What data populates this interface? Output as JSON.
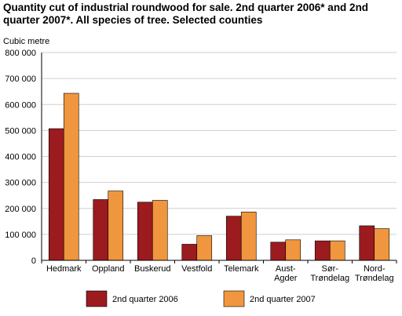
{
  "chart_data": {
    "type": "bar",
    "title_lines": [
      "Quantity cut of industrial roundwood for sale. 2nd quarter 2006* and 2nd",
      "quarter 2007*. All species of tree. Selected counties"
    ],
    "ylabel": "Cubic metre",
    "ylim": [
      0,
      800000
    ],
    "yticks": [
      0,
      100000,
      200000,
      300000,
      400000,
      500000,
      600000,
      700000,
      800000
    ],
    "ytick_labels": [
      "0",
      "100 000",
      "200 000",
      "300 000",
      "400 000",
      "500 000",
      "600 000",
      "700 000",
      "800 000"
    ],
    "grid": true,
    "legend_position": "bottom",
    "categories": [
      [
        "Hedmark"
      ],
      [
        "Oppland"
      ],
      [
        "Buskerud"
      ],
      [
        "Vestfold"
      ],
      [
        "Telemark"
      ],
      [
        "Aust-",
        "Agder"
      ],
      [
        "Sør-",
        "Trøndelag"
      ],
      [
        "Nord-",
        "Trøndelag"
      ]
    ],
    "series": [
      {
        "name": "2nd quarter 2006",
        "color": "#9b1b1f",
        "values": [
          507000,
          234000,
          224000,
          62000,
          170000,
          70000,
          75000,
          133000
        ]
      },
      {
        "name": "2nd quarter 2007",
        "color": "#f0963e",
        "values": [
          643000,
          267000,
          231000,
          95000,
          186000,
          79000,
          75000,
          122000
        ]
      }
    ]
  }
}
